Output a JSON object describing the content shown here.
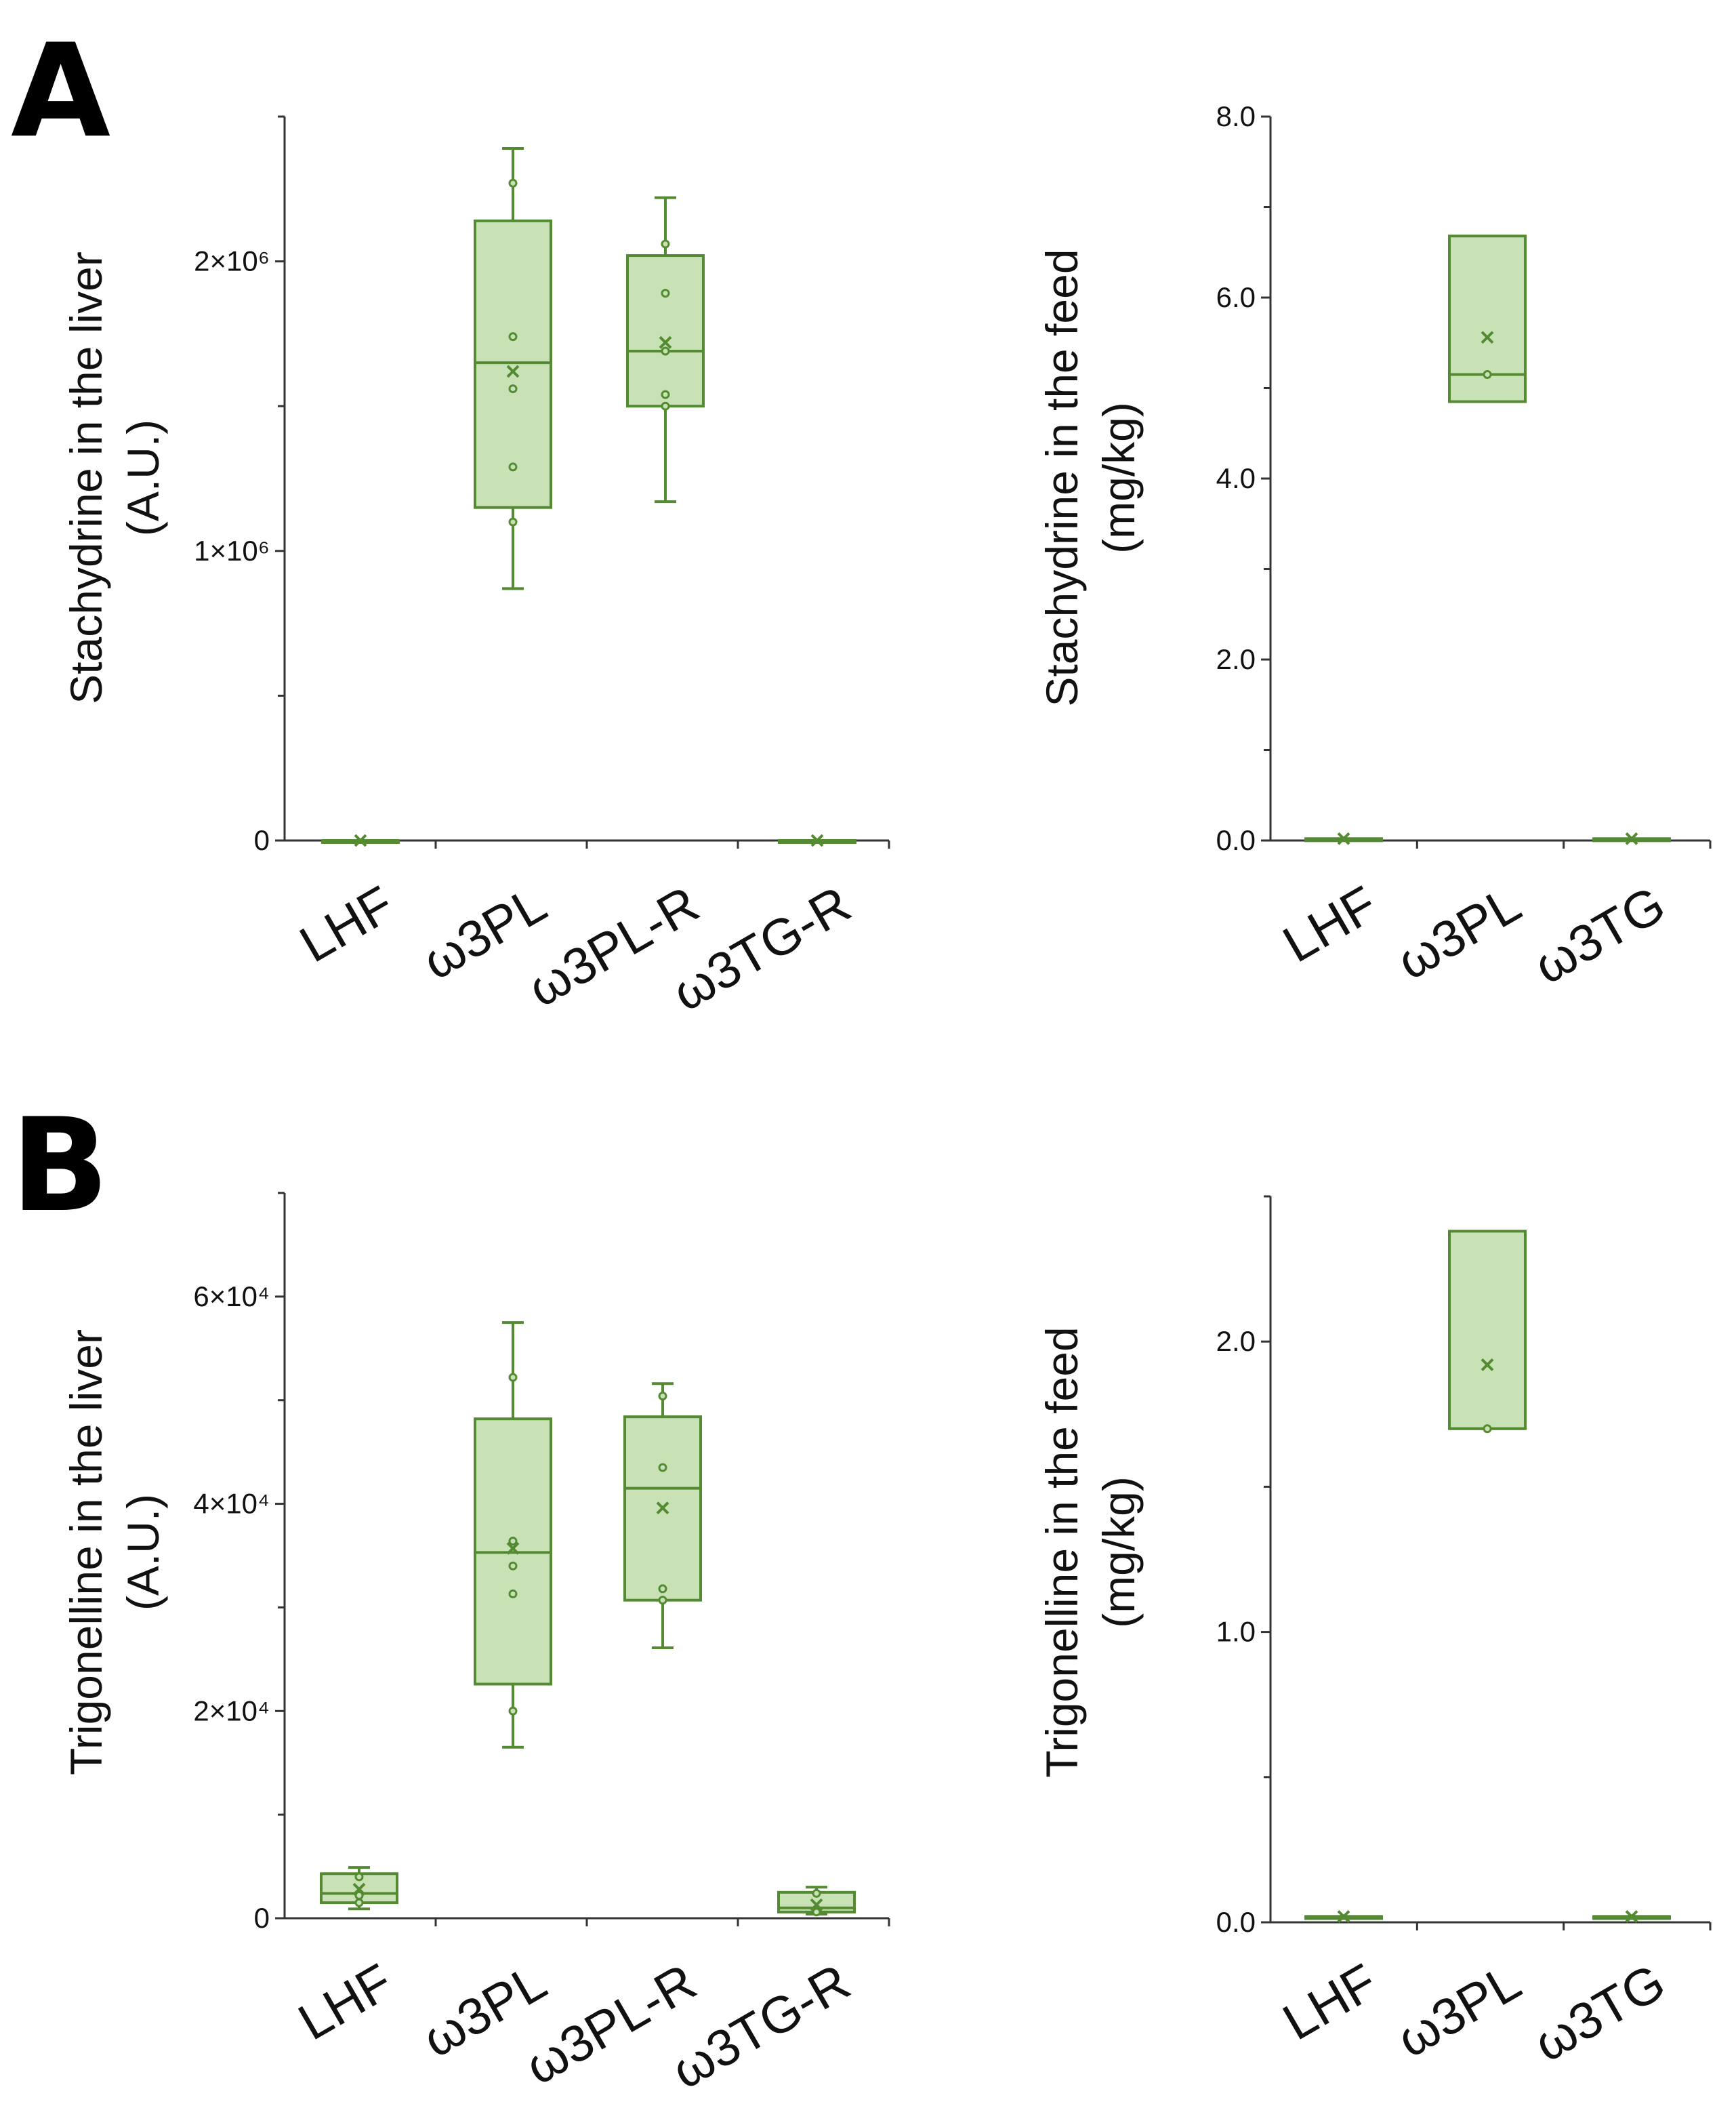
{
  "panels": [
    {
      "letter": "A"
    },
    {
      "letter": "B"
    }
  ],
  "colors": {
    "box_fill": "#c8e2b6",
    "box_stroke": "#548b32",
    "axis": "#333333",
    "text": "#111111"
  },
  "chart_data": [
    {
      "id": "A-liver",
      "type": "box",
      "panel": "A",
      "ylabel": [
        "Stachydrine in the liver",
        "(A.U.)"
      ],
      "categories": [
        "LHF",
        "ω3PL",
        "ω3PL-R",
        "ω3TG-R"
      ],
      "ylim": [
        0,
        2500000
      ],
      "yticks": [
        {
          "value": 0,
          "label": "0"
        },
        {
          "value": 1000000,
          "label": "1×10⁶"
        },
        {
          "value": 2000000,
          "label": "2×10⁶"
        }
      ],
      "yminor": [
        500000,
        1500000,
        2500000
      ],
      "boxes": [
        {
          "min": 0,
          "q1": 0,
          "median": 0,
          "q3": 0,
          "max": 0,
          "mean": 0,
          "points": []
        },
        {
          "min": 870000,
          "q1": 1150000,
          "median": 1650000,
          "q3": 2140000,
          "max": 2390000,
          "mean": 1620000,
          "points": [
            2270000,
            1740000,
            1560000,
            1290000,
            1100000
          ]
        },
        {
          "min": 1170000,
          "q1": 1500000,
          "median": 1690000,
          "q3": 2020000,
          "max": 2220000,
          "mean": 1720000,
          "points": [
            2060000,
            1890000,
            1690000,
            1540000,
            1500000
          ]
        },
        {
          "min": 0,
          "q1": 0,
          "median": 0,
          "q3": 0,
          "max": 0,
          "mean": 0,
          "points": []
        }
      ]
    },
    {
      "id": "A-feed",
      "type": "box",
      "panel": "A",
      "ylabel": [
        "Stachydrine in the feed",
        "(mg/kg)"
      ],
      "categories": [
        "LHF",
        "ω3PL",
        "ω3TG"
      ],
      "ylim": [
        0,
        8
      ],
      "yticks": [
        {
          "value": 0,
          "label": "0.0"
        },
        {
          "value": 2,
          "label": "2.0"
        },
        {
          "value": 4,
          "label": "4.0"
        },
        {
          "value": 6,
          "label": "6.0"
        },
        {
          "value": 8,
          "label": "8.0"
        }
      ],
      "yminor": [
        1,
        3,
        5,
        7
      ],
      "boxes": [
        {
          "min": 0.02,
          "q1": 0.02,
          "median": 0.02,
          "q3": 0.02,
          "max": 0.02,
          "mean": 0.02,
          "points": []
        },
        {
          "min": 4.85,
          "q1": 4.85,
          "median": 5.15,
          "q3": 6.68,
          "max": 6.68,
          "mean": 5.56,
          "points": [
            5.15
          ]
        },
        {
          "min": 0.02,
          "q1": 0.02,
          "median": 0.02,
          "q3": 0.02,
          "max": 0.02,
          "mean": 0.02,
          "points": []
        }
      ]
    },
    {
      "id": "B-liver",
      "type": "box",
      "panel": "B",
      "ylabel": [
        "Trigonelline in the liver",
        "(A.U.)"
      ],
      "categories": [
        "LHF",
        "ω3PL",
        "ω3PL-R",
        "ω3TG-R"
      ],
      "ylim": [
        0,
        70000
      ],
      "yticks": [
        {
          "value": 0,
          "label": "0"
        },
        {
          "value": 20000,
          "label": "2×10⁴"
        },
        {
          "value": 40000,
          "label": "4×10⁴"
        },
        {
          "value": 60000,
          "label": "6×10⁴"
        }
      ],
      "yminor": [
        10000,
        30000,
        50000,
        70000
      ],
      "boxes": [
        {
          "min": 900,
          "q1": 1500,
          "median": 2400,
          "q3": 4300,
          "max": 4900,
          "mean": 2800,
          "points": [
            4000,
            2200,
            1500
          ]
        },
        {
          "min": 16500,
          "q1": 22600,
          "median": 35300,
          "q3": 48200,
          "max": 57500,
          "mean": 35700,
          "points": [
            52200,
            36400,
            34000,
            31300,
            20000
          ]
        },
        {
          "min": 26100,
          "q1": 30700,
          "median": 41500,
          "q3": 48400,
          "max": 51600,
          "mean": 39600,
          "points": [
            50400,
            43500,
            31800,
            30700
          ]
        },
        {
          "min": 400,
          "q1": 600,
          "median": 1000,
          "q3": 2500,
          "max": 3000,
          "mean": 1300,
          "points": [
            2400,
            600
          ]
        }
      ]
    },
    {
      "id": "B-feed",
      "type": "box",
      "panel": "B",
      "ylabel": [
        "Trigonelline in the feed",
        "(mg/kg)"
      ],
      "categories": [
        "LHF",
        "ω3PL",
        "ω3TG"
      ],
      "ylim": [
        0,
        2.5
      ],
      "yticks": [
        {
          "value": 0,
          "label": "0.0"
        },
        {
          "value": 1,
          "label": "1.0"
        },
        {
          "value": 2,
          "label": "2.0"
        }
      ],
      "yminor": [
        0.5,
        1.5,
        2.5
      ],
      "boxes": [
        {
          "min": 0.02,
          "q1": 0.02,
          "median": 0.02,
          "q3": 0.02,
          "max": 0.02,
          "mean": 0.02,
          "points": []
        },
        {
          "min": 1.7,
          "q1": 1.7,
          "median": 1.7,
          "q3": 2.38,
          "max": 2.38,
          "mean": 1.92,
          "points": [
            1.7
          ]
        },
        {
          "min": 0.02,
          "q1": 0.02,
          "median": 0.02,
          "q3": 0.02,
          "max": 0.02,
          "mean": 0.02,
          "points": []
        }
      ]
    }
  ]
}
